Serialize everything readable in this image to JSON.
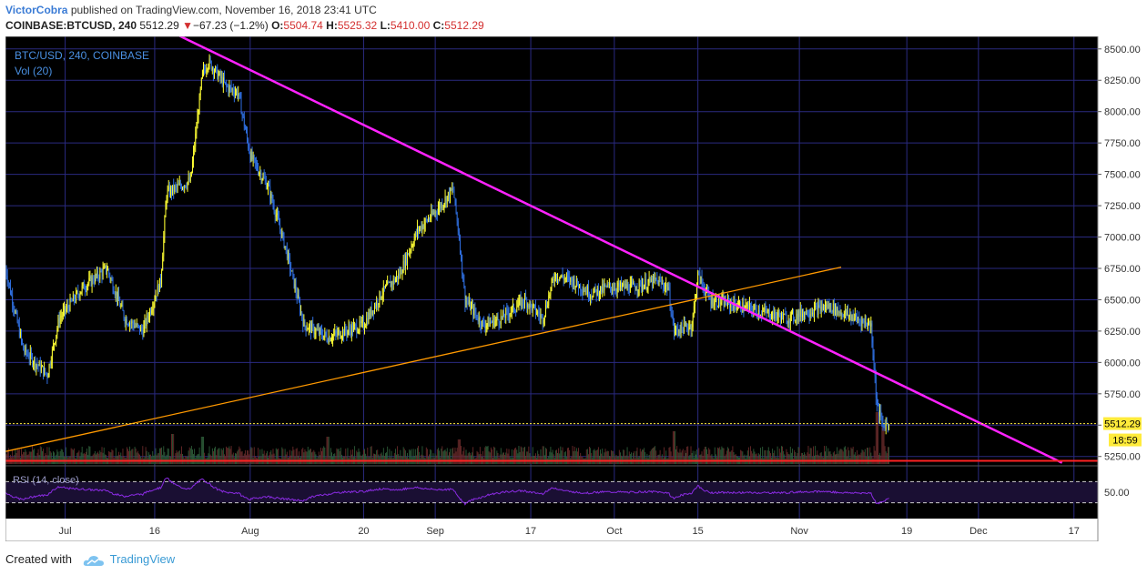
{
  "header": {
    "author": "VictorCobra",
    "published_text": "published on TradingView.com, November 16, 2018 23:41 UTC",
    "symbol": "COINBASE:BTCUSD, 240",
    "last": "5512.29",
    "change_arrow": "▼",
    "change": "−67.23 (−1.2%)",
    "o_label": "O:",
    "o": "5504.74",
    "h_label": "H:",
    "h": "5525.32",
    "l_label": "L:",
    "l": "5410.00",
    "c_label": "C:",
    "c": "5512.29"
  },
  "legend": {
    "series": "BTC/USD, 240, COINBASE",
    "vol": "Vol (20)",
    "rsi": "RSI (14, close)"
  },
  "price_labels": {
    "last": "5512.29",
    "countdown": "18:59"
  },
  "footer": {
    "created_with": "Created with",
    "brand": "TradingView"
  },
  "colors": {
    "background": "#000000",
    "grid": "#2a2a80",
    "up_candle": "#ffff33",
    "down_candle": "#2f6fe0",
    "magenta_trendline": "#ff22ff",
    "orange_trendline": "#ff9900",
    "support_line": "#ff2222",
    "rsi_line": "#8a2be2",
    "last_price_label": "#ffeb3b"
  },
  "chart_data": {
    "type": "candlestick",
    "price_axis": {
      "min": 5190,
      "max": 8600,
      "ticks": [
        5250,
        5500,
        5750,
        6000,
        6250,
        6500,
        6750,
        7000,
        7250,
        7500,
        7750,
        8000,
        8250,
        8500
      ],
      "tick_labels": [
        "5250.00",
        "5500.00",
        "5750.00",
        "6000.00",
        "6250.00",
        "6500.00",
        "6750.00",
        "7000.00",
        "7250.00",
        "7500.00",
        "7750.00",
        "8000.00",
        "8250.00",
        "8500.00"
      ]
    },
    "time_axis": {
      "start_date": "2018-06-21",
      "end_date": "2018-12-21",
      "ticks": [
        {
          "label": "Jul",
          "date": "2018-07-01"
        },
        {
          "label": "16",
          "date": "2018-07-16"
        },
        {
          "label": "Aug",
          "date": "2018-08-01"
        },
        {
          "label": "20",
          "date": "2018-08-20"
        },
        {
          "label": "Sep",
          "date": "2018-09-01"
        },
        {
          "label": "17",
          "date": "2018-09-17"
        },
        {
          "label": "Oct",
          "date": "2018-10-01"
        },
        {
          "label": "15",
          "date": "2018-10-15"
        },
        {
          "label": "Nov",
          "date": "2018-11-01"
        },
        {
          "label": "19",
          "date": "2018-11-19"
        },
        {
          "label": "Dec",
          "date": "2018-12-01"
        },
        {
          "label": "17",
          "date": "2018-12-17"
        }
      ]
    },
    "price_path": [
      [
        "2018-06-21",
        6750
      ],
      [
        "2018-06-24",
        6100
      ],
      [
        "2018-06-28",
        5900
      ],
      [
        "2018-06-30",
        6350
      ],
      [
        "2018-07-04",
        6600
      ],
      [
        "2018-07-08",
        6750
      ],
      [
        "2018-07-11",
        6350
      ],
      [
        "2018-07-14",
        6250
      ],
      [
        "2018-07-17",
        6650
      ],
      [
        "2018-07-18",
        7350
      ],
      [
        "2018-07-22",
        7450
      ],
      [
        "2018-07-24",
        8300
      ],
      [
        "2018-07-25",
        8400
      ],
      [
        "2018-07-28",
        8200
      ],
      [
        "2018-07-30",
        8150
      ],
      [
        "2018-08-01",
        7650
      ],
      [
        "2018-08-04",
        7400
      ],
      [
        "2018-08-07",
        6900
      ],
      [
        "2018-08-10",
        6300
      ],
      [
        "2018-08-14",
        6200
      ],
      [
        "2018-08-20",
        6300
      ],
      [
        "2018-08-23",
        6550
      ],
      [
        "2018-08-26",
        6700
      ],
      [
        "2018-08-29",
        7050
      ],
      [
        "2018-09-01",
        7200
      ],
      [
        "2018-09-04",
        7380
      ],
      [
        "2018-09-05",
        7000
      ],
      [
        "2018-09-06",
        6500
      ],
      [
        "2018-09-09",
        6300
      ],
      [
        "2018-09-12",
        6350
      ],
      [
        "2018-09-16",
        6500
      ],
      [
        "2018-09-19",
        6350
      ],
      [
        "2018-09-21",
        6700
      ],
      [
        "2018-09-24",
        6650
      ],
      [
        "2018-09-27",
        6550
      ],
      [
        "2018-09-30",
        6600
      ],
      [
        "2018-10-04",
        6600
      ],
      [
        "2018-10-08",
        6650
      ],
      [
        "2018-10-10",
        6600
      ],
      [
        "2018-10-11",
        6250
      ],
      [
        "2018-10-14",
        6300
      ],
      [
        "2018-10-15",
        6700
      ],
      [
        "2018-10-17",
        6500
      ],
      [
        "2018-10-22",
        6450
      ],
      [
        "2018-10-30",
        6350
      ],
      [
        "2018-11-02",
        6400
      ],
      [
        "2018-11-06",
        6450
      ],
      [
        "2018-11-08",
        6400
      ],
      [
        "2018-11-13",
        6300
      ],
      [
        "2018-11-14",
        5650
      ],
      [
        "2018-11-15",
        5500
      ],
      [
        "2018-11-16",
        5512.29
      ]
    ],
    "volume_spikes": [
      [
        "2018-07-19",
        0.55
      ],
      [
        "2018-07-24",
        0.5
      ],
      [
        "2018-08-14",
        0.5
      ],
      [
        "2018-09-05",
        0.45
      ],
      [
        "2018-10-11",
        0.6
      ],
      [
        "2018-11-14",
        0.95
      ],
      [
        "2018-11-15",
        0.7
      ]
    ],
    "rsi_axis": {
      "label": "50.00",
      "value": 50,
      "upper_band": 70,
      "lower_band": 30,
      "min": 0,
      "max": 100
    },
    "trendlines": [
      {
        "name": "magenta-descending",
        "from": [
          "2018-07-16",
          8700
        ],
        "to": [
          "2018-12-15",
          5200
        ],
        "color": "#ff22ff"
      },
      {
        "name": "orange-ascending",
        "from": [
          "2018-06-21",
          5290
        ],
        "to": [
          "2018-11-08",
          6760
        ],
        "color": "#ff9900"
      },
      {
        "name": "red-support",
        "from": [
          "2018-06-21",
          5215
        ],
        "to": [
          "2018-12-21",
          5215
        ],
        "color": "#ff2222"
      }
    ],
    "last_price": 5512.29
  }
}
